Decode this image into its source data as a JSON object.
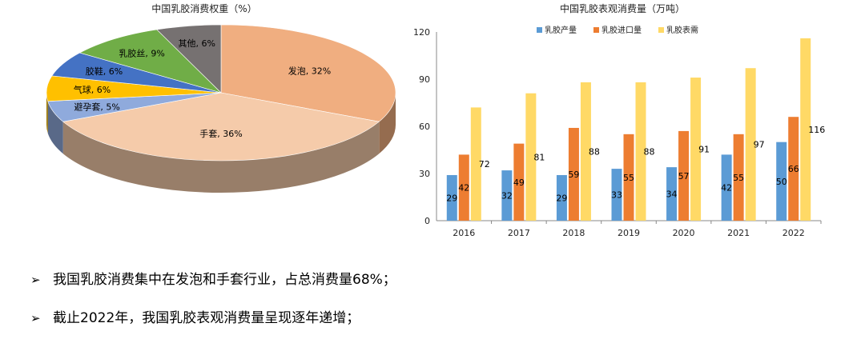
{
  "chart_data": [
    {
      "type": "pie",
      "title": "中国乳胶消费权重（%）",
      "slices": [
        {
          "name": "发泡",
          "value": 32,
          "label": "发泡, 32%",
          "color": "#F0AE80"
        },
        {
          "name": "手套",
          "value": 36,
          "label": "手套, 36%",
          "color": "#F5CBAA"
        },
        {
          "name": "避孕套",
          "value": 5,
          "label": "避孕套, 5%",
          "color": "#8FAADC"
        },
        {
          "name": "气球",
          "value": 6,
          "label": "气球, 6%",
          "color": "#FFC000"
        },
        {
          "name": "胶鞋",
          "value": 6,
          "label": "胶鞋, 6%",
          "color": "#4472C4"
        },
        {
          "name": "乳胶丝",
          "value": 9,
          "label": "乳胶丝, 9%",
          "color": "#70AD47"
        },
        {
          "name": "其他",
          "value": 6,
          "label": "其他, 6%",
          "color": "#767171"
        }
      ]
    },
    {
      "type": "bar",
      "title": "中国乳胶表观消费量（万吨）",
      "categories": [
        "2016",
        "2017",
        "2018",
        "2019",
        "2020",
        "2021",
        "2022"
      ],
      "series": [
        {
          "name": "乳胶产量",
          "color": "#5B9BD5",
          "values": [
            29,
            32,
            29,
            33,
            34,
            42,
            50
          ]
        },
        {
          "name": "乳胶进口量",
          "color": "#ED7D31",
          "values": [
            42,
            49,
            59,
            55,
            57,
            55,
            66
          ]
        },
        {
          "name": "乳胶表需",
          "color": "#FFD966",
          "values": [
            72,
            81,
            88,
            88,
            91,
            97,
            116
          ]
        }
      ],
      "ylim": [
        0,
        120
      ],
      "yticks": [
        0,
        30,
        60,
        90,
        120
      ],
      "legend": "top",
      "grid": false
    }
  ],
  "bullets": [
    {
      "marker": "➢",
      "text": "我国乳胶消费集中在发泡和手套行业，占总消费量68%；"
    },
    {
      "marker": "➢",
      "text": "截止2022年，我国乳胶表观消费量呈现逐年递增；"
    }
  ]
}
